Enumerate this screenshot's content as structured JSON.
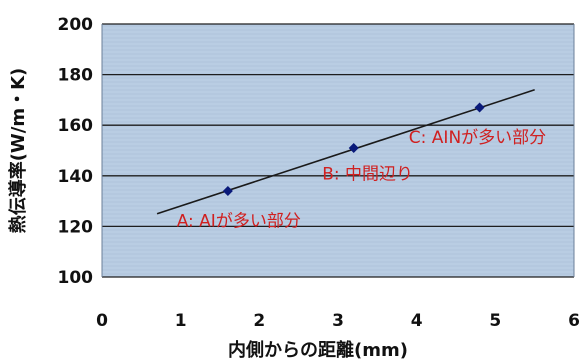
{
  "chart_data": {
    "type": "scatter",
    "title": "",
    "xlabel": "内側からの距離(mm)",
    "ylabel": "熱伝導率(W/m・K)",
    "xlim": [
      0,
      6
    ],
    "ylim": [
      100,
      200
    ],
    "xticks": [
      0,
      1,
      2,
      3,
      4,
      5,
      6
    ],
    "yticks": [
      100,
      120,
      140,
      160,
      180,
      200
    ],
    "grid": "horizontal",
    "legend": "none",
    "colors": {
      "plot_background": "#b9cde3",
      "grid": "#1e1e1e",
      "marker": "#0a1a7a",
      "trendline": "#1a1a1a",
      "annotation": "#d02020"
    },
    "series": [
      {
        "points": [
          {
            "x": 1.6,
            "y": 134
          },
          {
            "x": 3.2,
            "y": 151
          },
          {
            "x": 4.8,
            "y": 167
          }
        ]
      }
    ],
    "trendline": {
      "x": [
        0.7,
        5.5
      ],
      "y": [
        125,
        174
      ]
    },
    "annotations": [
      {
        "text": "A: AIが多い部分",
        "x": 0.95,
        "y": 120
      },
      {
        "text": "B: 中間辺り",
        "x": 2.8,
        "y": 138.5
      },
      {
        "text": "C: AINが多い部分",
        "x": 3.9,
        "y": 153
      }
    ]
  }
}
